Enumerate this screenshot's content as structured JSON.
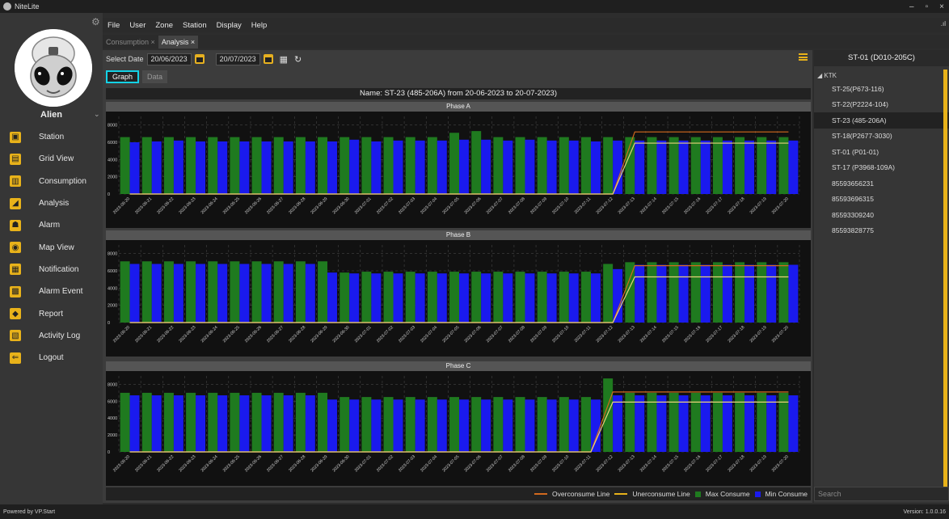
{
  "app": {
    "title": "NiteLite"
  },
  "window": {
    "minimize": "–",
    "restore": "▫",
    "close": "×"
  },
  "user": {
    "name": "Alien"
  },
  "menu": [
    "File",
    "User",
    "Zone",
    "Station",
    "Display",
    "Help"
  ],
  "doc_tabs": [
    {
      "label": "Consumption",
      "close": "×",
      "active": false
    },
    {
      "label": "Analysis",
      "close": "×",
      "active": true
    }
  ],
  "nav": [
    {
      "label": "Station",
      "icon": "station-icon",
      "color": "#e8b21a"
    },
    {
      "label": "Grid View",
      "icon": "grid-view-icon",
      "color": "#e8b21a"
    },
    {
      "label": "Consumption",
      "icon": "consumption-icon",
      "color": "#e8b21a"
    },
    {
      "label": "Analysis",
      "icon": "analysis-icon",
      "color": "#e8b21a"
    },
    {
      "label": "Alarm",
      "icon": "alarm-icon",
      "color": "#e8b21a"
    },
    {
      "label": "Map View",
      "icon": "map-view-icon",
      "color": "#e8b21a"
    },
    {
      "label": "Notification",
      "icon": "notification-icon",
      "color": "#e8b21a"
    },
    {
      "label": "Alarm Event",
      "icon": "alarm-event-icon",
      "color": "#e8b21a"
    },
    {
      "label": "Report",
      "icon": "report-icon",
      "color": "#e8b21a"
    },
    {
      "label": "Activity Log",
      "icon": "activity-log-icon",
      "color": "#e8b21a"
    },
    {
      "label": "Logout",
      "icon": "logout-icon",
      "color": "#e8b21a"
    }
  ],
  "toolbar": {
    "select_date_label": "Select Date",
    "from_date": "20/06/2023",
    "to_date": "20/07/2023"
  },
  "subtabs": {
    "graph": "Graph",
    "data": "Data"
  },
  "chart_title": "Name: ST-23 (485-206A) from 20-06-2023 to 20-07-2023)",
  "colors": {
    "max": "#1f7a1f",
    "min": "#1a1aee",
    "over": "#d2691e",
    "under": "#e8d27a"
  },
  "chart_data": [
    {
      "type": "bar",
      "title": "Phase A",
      "ylim": [
        0,
        9000
      ],
      "yticks": [
        0,
        2000,
        4000,
        6000,
        8000
      ],
      "categories": [
        "2023-06-20",
        "2023-06-21",
        "2023-06-22",
        "2023-06-23",
        "2023-06-24",
        "2023-06-25",
        "2023-06-26",
        "2023-06-27",
        "2023-06-28",
        "2023-06-29",
        "2023-06-30",
        "2023-07-01",
        "2023-07-02",
        "2023-07-03",
        "2023-07-04",
        "2023-07-05",
        "2023-07-06",
        "2023-07-07",
        "2023-07-08",
        "2023-07-09",
        "2023-07-10",
        "2023-07-11",
        "2023-07-12",
        "2023-07-13",
        "2023-07-14",
        "2023-07-15",
        "2023-07-16",
        "2023-07-17",
        "2023-07-18",
        "2023-07-19",
        "2023-07-20"
      ],
      "series": [
        {
          "name": "Max Consume",
          "values": [
            6600,
            6600,
            6600,
            6600,
            6600,
            6600,
            6600,
            6600,
            6600,
            6600,
            6600,
            6600,
            6600,
            6600,
            6600,
            7100,
            7300,
            6600,
            6600,
            6600,
            6600,
            6600,
            6600,
            6600,
            6600,
            6600,
            6600,
            6600,
            6600,
            6600,
            6600
          ]
        },
        {
          "name": "Min Consume",
          "values": [
            6000,
            6100,
            6200,
            6100,
            6100,
            6100,
            6100,
            6100,
            6100,
            6100,
            6300,
            6100,
            6200,
            6200,
            6200,
            6300,
            6300,
            6200,
            6300,
            6200,
            6200,
            6100,
            6200,
            6200,
            6200,
            6200,
            6200,
            6200,
            6200,
            6200,
            6200
          ]
        },
        {
          "name": "Overconsume Line",
          "values": [
            0,
            0,
            0,
            0,
            0,
            0,
            0,
            0,
            0,
            0,
            0,
            0,
            0,
            0,
            0,
            0,
            0,
            0,
            0,
            0,
            0,
            0,
            0,
            7200,
            7200,
            7200,
            7200,
            7200,
            7200,
            7200,
            7200
          ]
        },
        {
          "name": "Unerconsume Line",
          "values": [
            0,
            0,
            0,
            0,
            0,
            0,
            0,
            0,
            0,
            0,
            0,
            0,
            0,
            0,
            0,
            0,
            0,
            0,
            0,
            0,
            0,
            0,
            0,
            5900,
            5900,
            5900,
            5900,
            5900,
            5900,
            5900,
            5900
          ]
        }
      ]
    },
    {
      "type": "bar",
      "title": "Phase B",
      "ylim": [
        0,
        9000
      ],
      "yticks": [
        0,
        2000,
        4000,
        6000,
        8000
      ],
      "categories": [
        "2023-06-20",
        "2023-06-21",
        "2023-06-22",
        "2023-06-23",
        "2023-06-24",
        "2023-06-25",
        "2023-06-26",
        "2023-06-27",
        "2023-06-28",
        "2023-06-29",
        "2023-06-30",
        "2023-07-01",
        "2023-07-02",
        "2023-07-03",
        "2023-07-04",
        "2023-07-05",
        "2023-07-06",
        "2023-07-07",
        "2023-07-08",
        "2023-07-09",
        "2023-07-10",
        "2023-07-11",
        "2023-07-12",
        "2023-07-13",
        "2023-07-14",
        "2023-07-15",
        "2023-07-16",
        "2023-07-17",
        "2023-07-18",
        "2023-07-19",
        "2023-07-20"
      ],
      "series": [
        {
          "name": "Max Consume",
          "values": [
            7100,
            7100,
            7100,
            7100,
            7100,
            7100,
            7100,
            7100,
            7100,
            7100,
            5800,
            5900,
            5900,
            5900,
            5900,
            5900,
            5900,
            5900,
            5900,
            5900,
            5900,
            5900,
            6800,
            7000,
            7000,
            7000,
            7000,
            7000,
            7000,
            7000,
            7000
          ]
        },
        {
          "name": "Min Consume",
          "values": [
            6800,
            6800,
            6800,
            6800,
            6800,
            6800,
            6800,
            6800,
            6800,
            5800,
            5700,
            5700,
            5700,
            5700,
            5700,
            5700,
            5700,
            5700,
            5700,
            5700,
            5700,
            5700,
            6200,
            6700,
            6700,
            6700,
            6700,
            6700,
            6700,
            6700,
            6700
          ]
        },
        {
          "name": "Overconsume Line",
          "values": [
            0,
            0,
            0,
            0,
            0,
            0,
            0,
            0,
            0,
            0,
            0,
            0,
            0,
            0,
            0,
            0,
            0,
            0,
            0,
            0,
            0,
            0,
            0,
            6600,
            6600,
            6600,
            6600,
            6600,
            6600,
            6600,
            6600
          ]
        },
        {
          "name": "Unerconsume Line",
          "values": [
            0,
            0,
            0,
            0,
            0,
            0,
            0,
            0,
            0,
            0,
            0,
            0,
            0,
            0,
            0,
            0,
            0,
            0,
            0,
            0,
            0,
            0,
            0,
            5300,
            5300,
            5300,
            5300,
            5300,
            5300,
            5300,
            5300
          ]
        }
      ]
    },
    {
      "type": "bar",
      "title": "Phase C",
      "ylim": [
        0,
        9000
      ],
      "yticks": [
        0,
        2000,
        4000,
        6000,
        8000
      ],
      "categories": [
        "2023-06-20",
        "2023-06-21",
        "2023-06-22",
        "2023-06-23",
        "2023-06-24",
        "2023-06-25",
        "2023-06-26",
        "2023-06-27",
        "2023-06-28",
        "2023-06-29",
        "2023-06-30",
        "2023-07-01",
        "2023-07-02",
        "2023-07-03",
        "2023-07-04",
        "2023-07-05",
        "2023-07-06",
        "2023-07-07",
        "2023-07-08",
        "2023-07-09",
        "2023-07-10",
        "2023-07-11",
        "2023-07-12",
        "2023-07-13",
        "2023-07-14",
        "2023-07-15",
        "2023-07-16",
        "2023-07-17",
        "2023-07-18",
        "2023-07-19",
        "2023-07-20"
      ],
      "series": [
        {
          "name": "Max Consume",
          "values": [
            7000,
            7000,
            7000,
            7000,
            7000,
            7000,
            7000,
            7000,
            7000,
            7000,
            6500,
            6500,
            6500,
            6500,
            6500,
            6500,
            6500,
            6500,
            6500,
            6500,
            6500,
            6500,
            8700,
            7000,
            7000,
            7000,
            7000,
            7000,
            7000,
            7000,
            7000
          ]
        },
        {
          "name": "Min Consume",
          "values": [
            6700,
            6700,
            6700,
            6700,
            6700,
            6700,
            6700,
            6700,
            6700,
            6200,
            6200,
            6200,
            6200,
            6200,
            6200,
            6200,
            6200,
            6200,
            6200,
            6200,
            6200,
            6200,
            6700,
            6700,
            6700,
            6700,
            6700,
            6700,
            6700,
            6700,
            6700
          ]
        },
        {
          "name": "Overconsume Line",
          "values": [
            0,
            0,
            0,
            0,
            0,
            0,
            0,
            0,
            0,
            0,
            0,
            0,
            0,
            0,
            0,
            0,
            0,
            0,
            0,
            0,
            0,
            0,
            7100,
            7100,
            7100,
            7100,
            7100,
            7100,
            7100,
            7100,
            7100
          ]
        },
        {
          "name": "Unerconsume Line",
          "values": [
            0,
            0,
            0,
            0,
            0,
            0,
            0,
            0,
            0,
            0,
            0,
            0,
            0,
            0,
            0,
            0,
            0,
            0,
            0,
            0,
            0,
            0,
            5900,
            5900,
            5900,
            5900,
            5900,
            5900,
            5900,
            5900,
            5900
          ]
        }
      ]
    }
  ],
  "legend": [
    {
      "label": "Overconsume Line",
      "kind": "line",
      "color": "#d2691e"
    },
    {
      "label": "Unerconsume Line",
      "kind": "line",
      "color": "#e8b21a"
    },
    {
      "label": "Max Consume",
      "kind": "square",
      "color": "#1f7a1f"
    },
    {
      "label": "Min Consume",
      "kind": "square",
      "color": "#1a1aee"
    }
  ],
  "right_panel": {
    "header": "ST-01 (D010-205C)",
    "group": "KTK",
    "items": [
      "ST-25(P673-116)",
      "ST-22(P2224-104)",
      "ST-23 (485-206A)",
      "ST-18(P2677-3030)",
      "ST-01 (P01-01)",
      "ST-17 (P3968-109A)",
      "85593656231",
      "85593696315",
      "85593309240",
      "85593828775"
    ],
    "selected_index": 2,
    "search_placeholder": "Search"
  },
  "footer": {
    "left": "Powered by VP.Start",
    "right": "Version: 1.0.0.16"
  }
}
